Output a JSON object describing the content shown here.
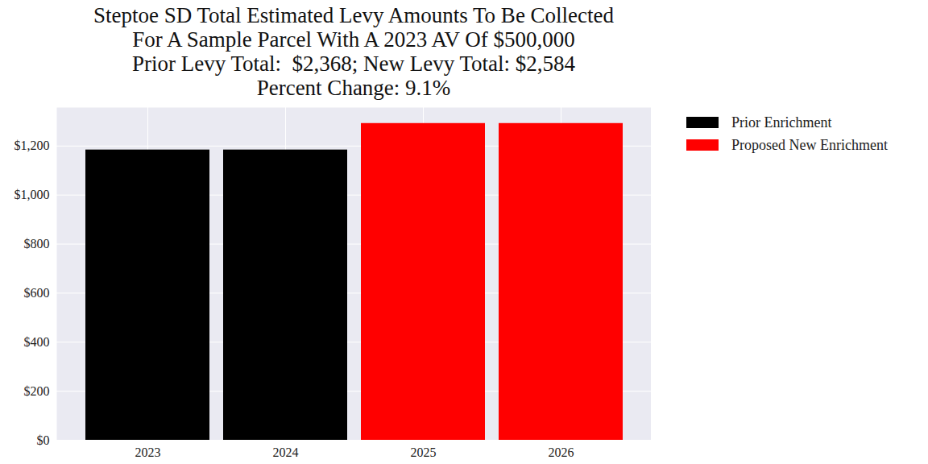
{
  "chart_data": {
    "type": "bar",
    "title": "Steptoe SD Total Estimated Levy Amounts To Be Collected\nFor A Sample Parcel With A 2023 AV Of $500,000\nPrior Levy Total:  $2,368; New Levy Total: $2,584\nPercent Change: 9.1%",
    "categories": [
      "2023",
      "2024",
      "2025",
      "2026"
    ],
    "series": [
      {
        "name": "Prior Enrichment",
        "color": "#000000",
        "values": [
          1184,
          1184,
          null,
          null
        ]
      },
      {
        "name": "Proposed New Enrichment",
        "color": "#ff0000",
        "values": [
          null,
          null,
          1292,
          1292
        ]
      }
    ],
    "ylim": [
      0,
      1357
    ],
    "yticks": [
      {
        "value": 0,
        "label": "$0"
      },
      {
        "value": 200,
        "label": "$200"
      },
      {
        "value": 400,
        "label": "$400"
      },
      {
        "value": 600,
        "label": "$600"
      },
      {
        "value": 800,
        "label": "$800"
      },
      {
        "value": 1000,
        "label": "$1,000"
      },
      {
        "value": 1200,
        "label": "$1,200"
      }
    ],
    "grid": true,
    "legend": "right"
  }
}
